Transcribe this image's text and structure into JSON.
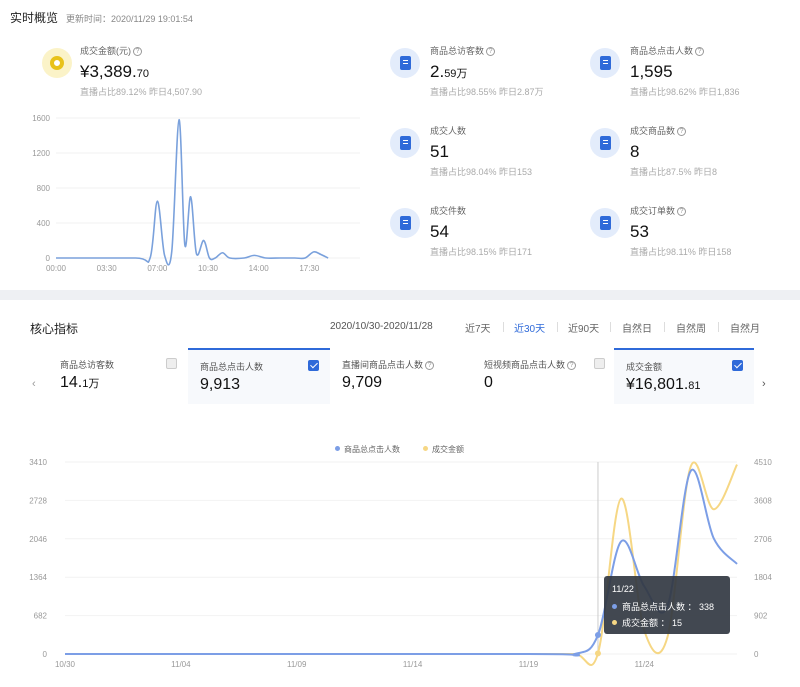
{
  "realtime": {
    "title": "实时概览",
    "updated": "更新时间：2020/11/29 19:01:54",
    "main_metric": {
      "label": "成交金额(元)",
      "value_int": "¥3,389.",
      "value_dec": "70",
      "foot": "直播占比89.12%   昨日4,507.90"
    },
    "metrics": [
      {
        "label": "商品总访客数",
        "value_int": "2.",
        "value_dec": "59万",
        "foot": "直播占比98.55%   昨日2.87万"
      },
      {
        "label": "商品总点击人数",
        "value": "1,595",
        "foot": "直播占比98.62%   昨日1,836"
      },
      {
        "label": "成交人数",
        "value": "51",
        "foot": "直播占比98.04%   昨日153"
      },
      {
        "label": "成交商品数",
        "value": "8",
        "foot": "直播占比87.5%   昨日8"
      },
      {
        "label": "成交件数",
        "value": "54",
        "foot": "直播占比98.15%   昨日171"
      },
      {
        "label": "成交订单数",
        "value": "53",
        "foot": "直播占比98.11%   昨日158"
      }
    ]
  },
  "core": {
    "title": "核心指标",
    "date_range": "2020/10/30-2020/11/28",
    "range_tabs": [
      "近7天",
      "近30天",
      "近90天",
      "自然日",
      "自然周",
      "自然月"
    ],
    "active_tab": "近30天",
    "cards": [
      {
        "label": "商品总访客数",
        "value_int": "14.",
        "value_dec": "1万",
        "selected": false,
        "checked": false
      },
      {
        "label": "商品总点击人数",
        "value": "9,913",
        "selected": true,
        "checked": true
      },
      {
        "label": "直播间商品点击人数",
        "value": "9,709",
        "selected": false,
        "checked": false
      },
      {
        "label": "短视频商品点击人数",
        "value": "0",
        "selected": false,
        "checked": false
      },
      {
        "label": "成交金额",
        "value_int": "¥16,801.",
        "value_dec": "81",
        "selected": true,
        "checked": true
      }
    ],
    "legend": [
      "商品总点击人数",
      "成交金额"
    ],
    "tooltip": {
      "date": "11/22",
      "rows": [
        {
          "label": "商品总点击人数 ：",
          "value": "338"
        },
        {
          "label": "成交金额 ：",
          "value": "15"
        }
      ]
    }
  },
  "colors": {
    "accent": "#2f6ad9",
    "series_blue": "#7c9ee6",
    "series_yellow": "#f6d784",
    "realtime_line": "#7aa1dc"
  },
  "chart_data": [
    {
      "type": "line",
      "title": "",
      "x_ticks": [
        "00:00",
        "03:30",
        "07:00",
        "10:30",
        "14:00",
        "17:30"
      ],
      "y_ticks": [
        "0",
        "400",
        "800",
        "1200",
        "1600"
      ],
      "ylim": [
        0,
        1600
      ],
      "x_hours": [
        0,
        5.5,
        6.5,
        7.0,
        7.5,
        8.0,
        8.5,
        8.9,
        9.3,
        9.7,
        10.2,
        10.6,
        11.0,
        11.5,
        12.0,
        13.0,
        13.7,
        14.5,
        15.5,
        16.5,
        17.2,
        17.8,
        18.3,
        18.8
      ],
      "values": [
        0,
        0,
        0,
        650,
        30,
        80,
        1580,
        150,
        700,
        50,
        200,
        0,
        0,
        60,
        0,
        0,
        30,
        0,
        0,
        0,
        0,
        70,
        40,
        0
      ]
    },
    {
      "type": "line",
      "categories": [
        "10/30",
        "11/04",
        "11/09",
        "11/14",
        "11/19",
        "11/24"
      ],
      "left_ticks": [
        "0",
        "682",
        "1364",
        "2046",
        "2728",
        "3410"
      ],
      "right_ticks": [
        "0",
        "902",
        "1804",
        "2706",
        "3608",
        "4510"
      ],
      "left_ylim": [
        0,
        3410
      ],
      "right_ylim": [
        0,
        4510
      ],
      "dates": [
        "10/30",
        "11/19",
        "11/21",
        "11/22",
        "11/23",
        "11/24",
        "11/25",
        "11/26",
        "11/27",
        "11/28"
      ],
      "series": [
        {
          "name": "商品总点击人数",
          "axis": "left",
          "values": [
            0,
            0,
            0,
            338,
            2000,
            1200,
            850,
            3250,
            2050,
            1600
          ]
        },
        {
          "name": "成交金额",
          "axis": "right",
          "values": [
            0,
            0,
            0,
            15,
            3650,
            550,
            400,
            4400,
            3400,
            4450
          ]
        }
      ],
      "tooltip_index": 3
    }
  ]
}
